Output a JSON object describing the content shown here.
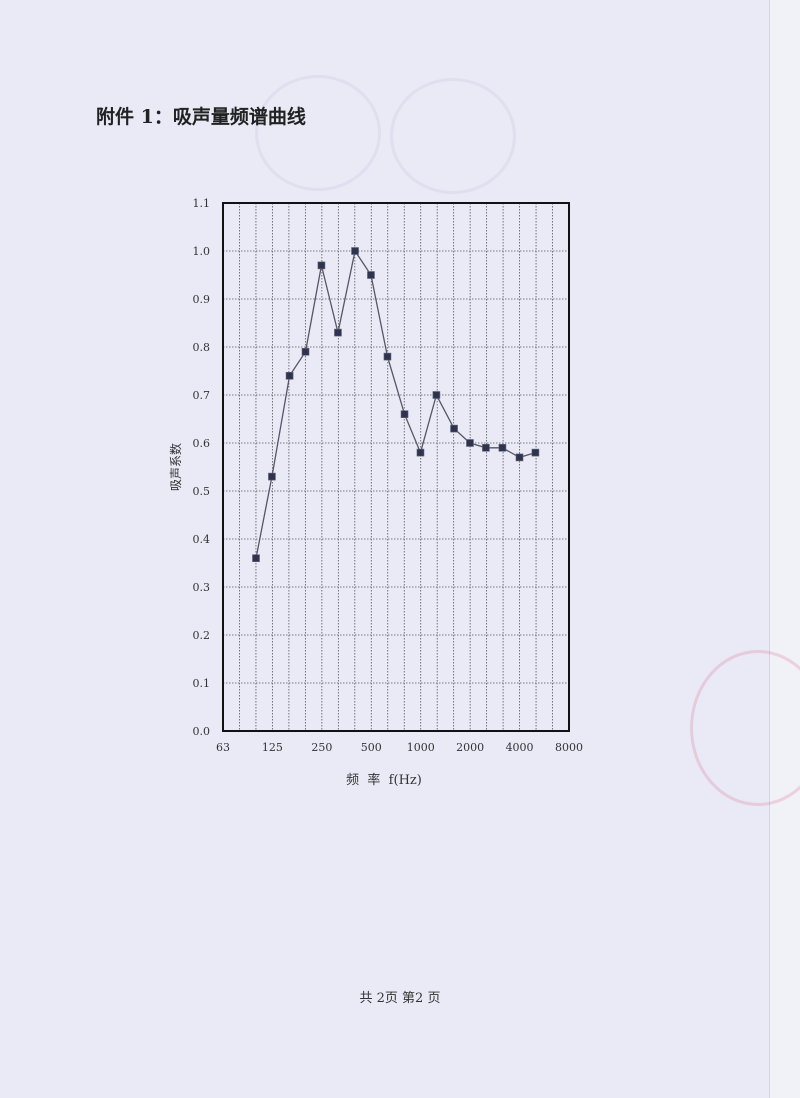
{
  "document": {
    "title": "附件 1：吸声量频谱曲线",
    "footer": "共 2页 第2 页"
  },
  "chart_data": {
    "type": "line",
    "title": "",
    "xlabel": "频  率  f(Hz)",
    "ylabel": "吸声系数",
    "x_scale": "log",
    "xlim": [
      63,
      8000
    ],
    "ylim": [
      0,
      1.1
    ],
    "x_ticks": [
      "63",
      "125",
      "250",
      "500",
      "1000",
      "2000",
      "4000",
      "8000"
    ],
    "y_ticks": [
      "0.0",
      "0.1",
      "0.2",
      "0.3",
      "0.4",
      "0.5",
      "0.6",
      "0.7",
      "0.8",
      "0.9",
      "1.0",
      "1.1"
    ],
    "grid": true,
    "marker": "square",
    "line_color": "#555566",
    "marker_color": "#2e3350",
    "x": [
      100,
      125,
      160,
      200,
      250,
      315,
      400,
      500,
      630,
      800,
      1000,
      1250,
      1600,
      2000,
      2500,
      3150,
      4000,
      5000
    ],
    "values": [
      0.36,
      0.53,
      0.74,
      0.79,
      0.97,
      0.83,
      1.0,
      0.95,
      0.78,
      0.66,
      0.58,
      0.7,
      0.63,
      0.6,
      0.59,
      0.59,
      0.57,
      0.58
    ]
  }
}
